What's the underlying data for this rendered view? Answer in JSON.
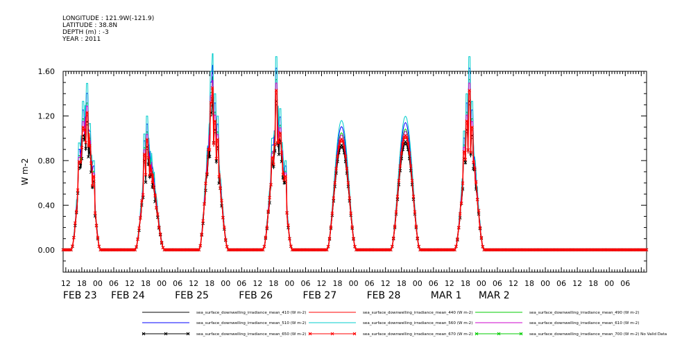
{
  "header": {
    "longitude": "LONGITUDE : 121.9W(-121.9)",
    "latitude": "LATITUDE : 38.8N",
    "depth": "DEPTH (m) : -3",
    "year": "YEAR : 2011"
  },
  "chart_data": {
    "type": "line",
    "ylabel": "W m-2",
    "ylim": [
      -0.2,
      1.6
    ],
    "yticks": [
      "1.60",
      "1.20",
      "0.80",
      "0.40",
      "0.00"
    ],
    "ytick_values": [
      1.6,
      1.2,
      0.8,
      0.4,
      0.0
    ],
    "xlim_hours": [
      -1,
      218
    ],
    "x_hour_labels": [
      {
        "h": 0,
        "label": "12"
      },
      {
        "h": 6,
        "label": "18"
      },
      {
        "h": 12,
        "label": "00"
      },
      {
        "h": 18,
        "label": "06"
      },
      {
        "h": 24,
        "label": "12"
      },
      {
        "h": 30,
        "label": "18"
      },
      {
        "h": 36,
        "label": "00"
      },
      {
        "h": 42,
        "label": "06"
      },
      {
        "h": 48,
        "label": "12"
      },
      {
        "h": 54,
        "label": "18"
      },
      {
        "h": 60,
        "label": "00"
      },
      {
        "h": 66,
        "label": "06"
      },
      {
        "h": 72,
        "label": "12"
      },
      {
        "h": 78,
        "label": "18"
      },
      {
        "h": 84,
        "label": "00"
      },
      {
        "h": 90,
        "label": "06"
      },
      {
        "h": 96,
        "label": "12"
      },
      {
        "h": 102,
        "label": "18"
      },
      {
        "h": 108,
        "label": "00"
      },
      {
        "h": 114,
        "label": "06"
      },
      {
        "h": 120,
        "label": "12"
      },
      {
        "h": 126,
        "label": "18"
      },
      {
        "h": 132,
        "label": "00"
      },
      {
        "h": 138,
        "label": "06"
      },
      {
        "h": 144,
        "label": "12"
      },
      {
        "h": 150,
        "label": "18"
      },
      {
        "h": 156,
        "label": "00"
      },
      {
        "h": 162,
        "label": "06"
      },
      {
        "h": 168,
        "label": "12"
      },
      {
        "h": 174,
        "label": "18"
      },
      {
        "h": 180,
        "label": "00"
      },
      {
        "h": 186,
        "label": "06"
      },
      {
        "h": 192,
        "label": "12"
      },
      {
        "h": 198,
        "label": "18"
      },
      {
        "h": 204,
        "label": "00"
      },
      {
        "h": 210,
        "label": "06"
      }
    ],
    "x_date_labels": [
      {
        "h": 0,
        "label": "FEB 23"
      },
      {
        "h": 18,
        "label": "FEB 24"
      },
      {
        "h": 42,
        "label": "FEB 25"
      },
      {
        "h": 66,
        "label": "FEB 26"
      },
      {
        "h": 90,
        "label": "FEB 27"
      },
      {
        "h": 114,
        "label": "FEB 28"
      },
      {
        "h": 138,
        "label": "MAR  1"
      },
      {
        "h": 156,
        "label": "MAR  2"
      }
    ],
    "days": [
      {
        "start": 2,
        "peak": 7.5,
        "end": 13,
        "max410": 0.98,
        "noisy": true,
        "spikes": [
          [
            5.0,
            0.72
          ],
          [
            6.5,
            1.0
          ],
          [
            8.0,
            1.12
          ],
          [
            9.0,
            0.85
          ],
          [
            10.5,
            0.6
          ]
        ]
      },
      {
        "start": 26,
        "peak": 31,
        "end": 37,
        "max410": 0.7,
        "noisy": true,
        "spikes": [
          [
            29.5,
            0.78
          ],
          [
            30.5,
            0.9
          ],
          [
            31.2,
            0.75
          ],
          [
            32.5,
            0.55
          ]
        ]
      },
      {
        "start": 50,
        "peak": 55,
        "end": 61,
        "max410": 0.98,
        "noisy": true,
        "spikes": [
          [
            54.5,
            1.2
          ],
          [
            55.2,
            1.32
          ],
          [
            56.0,
            1.05
          ],
          [
            57.0,
            0.9
          ]
        ]
      },
      {
        "start": 74,
        "peak": 79.5,
        "end": 85,
        "max410": 0.93,
        "noisy": true,
        "spikes": [
          [
            77.5,
            0.75
          ],
          [
            79.0,
            1.3
          ],
          [
            80.5,
            0.95
          ],
          [
            82.5,
            0.6
          ]
        ]
      },
      {
        "start": 98,
        "peak": 103.5,
        "end": 109,
        "max410": 0.92,
        "noisy": false,
        "spikes": []
      },
      {
        "start": 122,
        "peak": 127.5,
        "end": 133,
        "max410": 0.95,
        "noisy": false,
        "spikes": []
      },
      {
        "start": 146,
        "peak": 151.5,
        "end": 157,
        "max410": 0.9,
        "noisy": true,
        "spikes": [
          [
            149.5,
            0.8
          ],
          [
            150.5,
            1.05
          ],
          [
            151.5,
            1.3
          ],
          [
            152.5,
            1.0
          ]
        ]
      }
    ],
    "series": [
      {
        "name": "sea_surface_downwelling_irradiance_mean_410 (W m-2)",
        "color": "#000000",
        "scale": 1.0,
        "marker": "none"
      },
      {
        "name": "sea_surface_downwelling_irradiance_mean_440 (W m-2)",
        "color": "#ff0000",
        "scale": 1.06,
        "marker": "none"
      },
      {
        "name": "sea_surface_downwelling_irradiance_mean_490 (W m-2)",
        "color": "#00cc00",
        "scale": 1.14,
        "marker": "none"
      },
      {
        "name": "sea_surface_downwelling_irradiance_mean_510 (W m-2)",
        "color": "#0000ff",
        "scale": 1.2,
        "marker": "none"
      },
      {
        "name": "sea_surface_downwelling_irradiance_mean_560 (W m-2)",
        "color": "#00cccc",
        "scale": 1.26,
        "marker": "none"
      },
      {
        "name": "sea_surface_downwelling_irradiance_mean_610 (W m-2)",
        "color": "#cc00cc",
        "scale": 1.12,
        "marker": "none"
      },
      {
        "name": "sea_surface_downwelling_irradiance_mean_650 (W m-2)",
        "color": "#000000",
        "scale": 1.02,
        "marker": "x"
      },
      {
        "name": "sea_surface_downwelling_irradiance_mean_670 (W m-2)",
        "color": "#ff0000",
        "scale": 1.08,
        "marker": "x"
      },
      {
        "name": "sea_surface_downwelling_irradiance_mean_700 (W m-2) No Valid Data",
        "color": "#00cc00",
        "scale": 0,
        "marker": "x"
      }
    ]
  }
}
